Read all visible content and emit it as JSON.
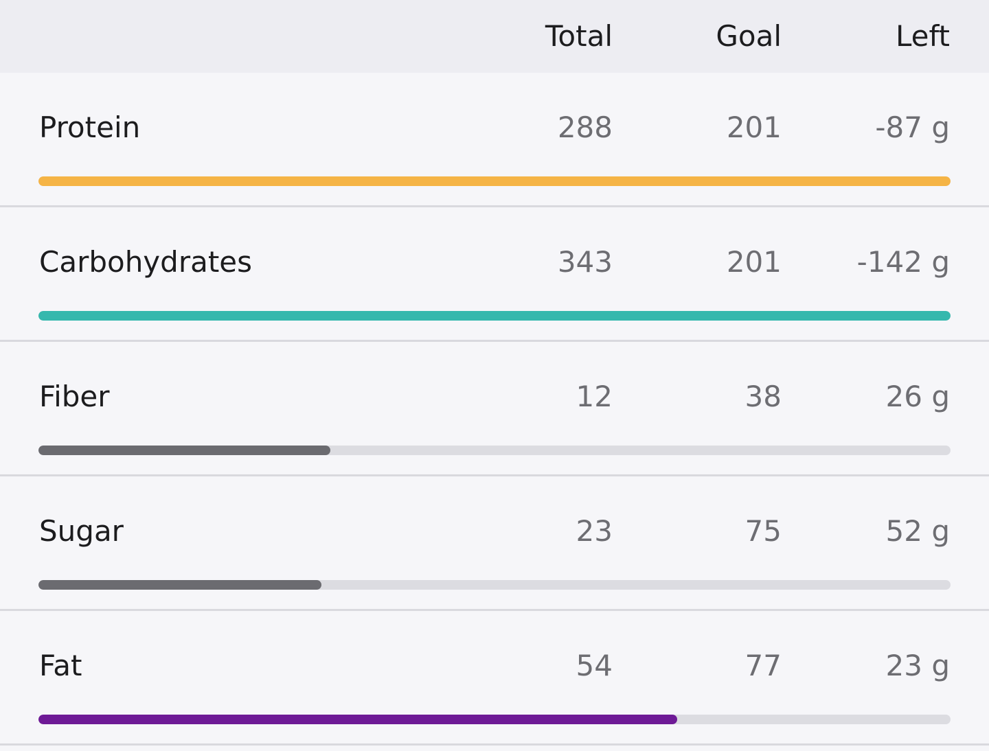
{
  "header": {
    "total_label": "Total",
    "goal_label": "Goal",
    "left_label": "Left"
  },
  "nutrients": [
    {
      "name": "Protein",
      "total": "288",
      "goal": "201",
      "left": "-87 g",
      "progress": 1.0,
      "color": "#f5b446"
    },
    {
      "name": "Carbohydrates",
      "total": "343",
      "goal": "201",
      "left": "-142 g",
      "progress": 1.0,
      "color": "#35b8ad"
    },
    {
      "name": "Fiber",
      "total": "12",
      "goal": "38",
      "left": "26 g",
      "progress": 0.32,
      "color": "#6b6b70"
    },
    {
      "name": "Sugar",
      "total": "23",
      "goal": "75",
      "left": "52 g",
      "progress": 0.31,
      "color": "#6b6b70"
    },
    {
      "name": "Fat",
      "total": "54",
      "goal": "77",
      "left": "23 g",
      "progress": 0.7,
      "color": "#6e1a96"
    }
  ]
}
